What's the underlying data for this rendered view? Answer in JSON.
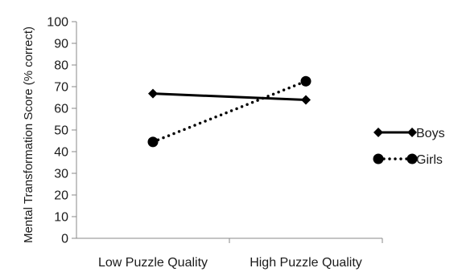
{
  "chart_data": {
    "type": "line",
    "title": "",
    "xlabel": "",
    "ylabel": "Mental Transformation Score (% correct)",
    "categories": [
      "Low Puzzle Quality",
      "High Puzzle Quality"
    ],
    "ylim": [
      0,
      100
    ],
    "yticks": [
      "0",
      "10",
      "20",
      "30",
      "40",
      "50",
      "60",
      "70",
      "80",
      "90",
      "100"
    ],
    "grid": false,
    "legend_position": "right",
    "series": [
      {
        "name": "Boys",
        "values": [
          66.8,
          63.9
        ],
        "marker": "diamond",
        "line_style": "solid",
        "color": "#000000"
      },
      {
        "name": "Girls",
        "values": [
          44.5,
          72.5
        ],
        "marker": "circle",
        "line_style": "dotted",
        "color": "#000000"
      }
    ]
  }
}
